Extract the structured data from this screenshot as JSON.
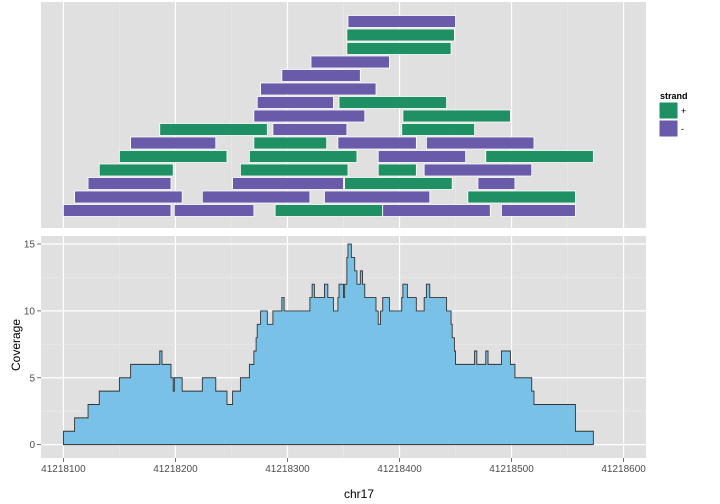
{
  "colors": {
    "panel_bg": "#e0e0e0",
    "grid_major": "#ffffff",
    "grid_minor": "#ebebeb",
    "plus_strand": "#1f8f64",
    "minus_strand": "#6a5aaa",
    "coverage_fill": "#79c1e6",
    "coverage_line": "#333333"
  },
  "chart_data": [
    {
      "type": "alignment",
      "x_range": [
        41218080,
        41218620
      ],
      "x_breaks": [
        41218100,
        41218200,
        41218300,
        41218400,
        41218500,
        41218600
      ],
      "legend": {
        "title": "strand",
        "placement": "right",
        "entries": [
          {
            "key": "plus",
            "label": "+",
            "color": "#1f8f64"
          },
          {
            "key": "minus",
            "label": "-",
            "color": "#6a5aaa"
          }
        ]
      },
      "reads": [
        {
          "start": 41218354,
          "end": 41218450,
          "row": 16,
          "strand": "-"
        },
        {
          "start": 41218353,
          "end": 41218449,
          "row": 15,
          "strand": "+"
        },
        {
          "start": 41218353,
          "end": 41218446,
          "row": 14,
          "strand": "+"
        },
        {
          "start": 41218321,
          "end": 41218391,
          "row": 13,
          "strand": "-"
        },
        {
          "start": 41218295,
          "end": 41218365,
          "row": 12,
          "strand": "-"
        },
        {
          "start": 41218276,
          "end": 41218379,
          "row": 11,
          "strand": "-"
        },
        {
          "start": 41218273,
          "end": 41218341,
          "row": 10,
          "strand": "-"
        },
        {
          "start": 41218346,
          "end": 41218442,
          "row": 10,
          "strand": "+"
        },
        {
          "start": 41218270,
          "end": 41218369,
          "row": 9,
          "strand": "-"
        },
        {
          "start": 41218403,
          "end": 41218499,
          "row": 9,
          "strand": "+"
        },
        {
          "start": 41218186,
          "end": 41218282,
          "row": 8,
          "strand": "+"
        },
        {
          "start": 41218287,
          "end": 41218353,
          "row": 8,
          "strand": "-"
        },
        {
          "start": 41218402,
          "end": 41218467,
          "row": 8,
          "strand": "+"
        },
        {
          "start": 41218160,
          "end": 41218236,
          "row": 7,
          "strand": "-"
        },
        {
          "start": 41218270,
          "end": 41218335,
          "row": 7,
          "strand": "+"
        },
        {
          "start": 41218345,
          "end": 41218415,
          "row": 7,
          "strand": "-"
        },
        {
          "start": 41218424,
          "end": 41218520,
          "row": 7,
          "strand": "-"
        },
        {
          "start": 41218150,
          "end": 41218246,
          "row": 6,
          "strand": "+"
        },
        {
          "start": 41218266,
          "end": 41218362,
          "row": 6,
          "strand": "+"
        },
        {
          "start": 41218381,
          "end": 41218459,
          "row": 6,
          "strand": "-"
        },
        {
          "start": 41218477,
          "end": 41218573,
          "row": 6,
          "strand": "+"
        },
        {
          "start": 41218132,
          "end": 41218198,
          "row": 5,
          "strand": "+"
        },
        {
          "start": 41218258,
          "end": 41218354,
          "row": 5,
          "strand": "+"
        },
        {
          "start": 41218381,
          "end": 41218415,
          "row": 5,
          "strand": "+"
        },
        {
          "start": 41218422,
          "end": 41218518,
          "row": 5,
          "strand": "-"
        },
        {
          "start": 41218122,
          "end": 41218196,
          "row": 4,
          "strand": "-"
        },
        {
          "start": 41218251,
          "end": 41218350,
          "row": 4,
          "strand": "-"
        },
        {
          "start": 41218351,
          "end": 41218447,
          "row": 4,
          "strand": "+"
        },
        {
          "start": 41218470,
          "end": 41218503,
          "row": 4,
          "strand": "-"
        },
        {
          "start": 41218110,
          "end": 41218206,
          "row": 3,
          "strand": "-"
        },
        {
          "start": 41218224,
          "end": 41218320,
          "row": 3,
          "strand": "-"
        },
        {
          "start": 41218333,
          "end": 41218427,
          "row": 3,
          "strand": "-"
        },
        {
          "start": 41218461,
          "end": 41218557,
          "row": 3,
          "strand": "+"
        },
        {
          "start": 41218100,
          "end": 41218196,
          "row": 2,
          "strand": "-"
        },
        {
          "start": 41218199,
          "end": 41218270,
          "row": 2,
          "strand": "-"
        },
        {
          "start": 41218289,
          "end": 41218385,
          "row": 2,
          "strand": "+"
        },
        {
          "start": 41218385,
          "end": 41218481,
          "row": 2,
          "strand": "-"
        },
        {
          "start": 41218491,
          "end": 41218557,
          "row": 2,
          "strand": "-"
        }
      ]
    },
    {
      "type": "area",
      "xlabel": "chr17",
      "ylabel": "Coverage",
      "x_range": [
        41218080,
        41218620
      ],
      "x_breaks": [
        41218100,
        41218200,
        41218300,
        41218400,
        41218500,
        41218600
      ],
      "x_tick_labels": [
        "41218100",
        "41218200",
        "41218300",
        "41218400",
        "41218500",
        "41218600"
      ],
      "ylim": [
        -1,
        15.6
      ],
      "y_breaks": [
        0,
        5,
        10,
        15
      ],
      "y_tick_labels": [
        "0",
        "5",
        "10",
        "15"
      ],
      "points": [
        [
          41218100,
          0
        ],
        [
          41218100,
          1
        ],
        [
          41218110,
          1
        ],
        [
          41218110,
          2
        ],
        [
          41218122,
          2
        ],
        [
          41218122,
          3
        ],
        [
          41218132,
          3
        ],
        [
          41218132,
          4
        ],
        [
          41218150,
          4
        ],
        [
          41218150,
          5
        ],
        [
          41218160,
          5
        ],
        [
          41218160,
          6
        ],
        [
          41218186,
          6
        ],
        [
          41218186,
          7
        ],
        [
          41218188,
          7
        ],
        [
          41218188,
          6
        ],
        [
          41218196,
          6
        ],
        [
          41218196,
          5
        ],
        [
          41218198,
          5
        ],
        [
          41218198,
          4
        ],
        [
          41218199,
          4
        ],
        [
          41218199,
          5
        ],
        [
          41218206,
          5
        ],
        [
          41218206,
          4
        ],
        [
          41218224,
          4
        ],
        [
          41218224,
          5
        ],
        [
          41218236,
          5
        ],
        [
          41218236,
          4
        ],
        [
          41218246,
          4
        ],
        [
          41218246,
          3
        ],
        [
          41218251,
          3
        ],
        [
          41218251,
          4
        ],
        [
          41218258,
          4
        ],
        [
          41218258,
          5
        ],
        [
          41218266,
          5
        ],
        [
          41218266,
          6
        ],
        [
          41218270,
          6
        ],
        [
          41218270,
          7
        ],
        [
          41218272,
          7
        ],
        [
          41218272,
          8
        ],
        [
          41218273,
          8
        ],
        [
          41218273,
          9
        ],
        [
          41218276,
          9
        ],
        [
          41218276,
          10
        ],
        [
          41218282,
          10
        ],
        [
          41218282,
          9
        ],
        [
          41218287,
          9
        ],
        [
          41218287,
          10
        ],
        [
          41218295,
          10
        ],
        [
          41218295,
          11
        ],
        [
          41218297,
          11
        ],
        [
          41218297,
          10
        ],
        [
          41218320,
          10
        ],
        [
          41218320,
          11
        ],
        [
          41218322,
          11
        ],
        [
          41218322,
          12
        ],
        [
          41218324,
          12
        ],
        [
          41218324,
          11
        ],
        [
          41218333,
          11
        ],
        [
          41218333,
          12
        ],
        [
          41218336,
          12
        ],
        [
          41218336,
          11
        ],
        [
          41218341,
          11
        ],
        [
          41218341,
          10
        ],
        [
          41218345,
          10
        ],
        [
          41218345,
          11
        ],
        [
          41218346,
          11
        ],
        [
          41218346,
          12
        ],
        [
          41218350,
          12
        ],
        [
          41218350,
          11
        ],
        [
          41218351,
          11
        ],
        [
          41218351,
          12
        ],
        [
          41218353,
          12
        ],
        [
          41218353,
          14
        ],
        [
          41218354,
          14
        ],
        [
          41218354,
          15
        ],
        [
          41218357,
          15
        ],
        [
          41218357,
          14
        ],
        [
          41218360,
          14
        ],
        [
          41218360,
          13
        ],
        [
          41218362,
          13
        ],
        [
          41218362,
          12
        ],
        [
          41218365,
          12
        ],
        [
          41218365,
          13
        ],
        [
          41218367,
          13
        ],
        [
          41218367,
          12
        ],
        [
          41218369,
          12
        ],
        [
          41218369,
          11
        ],
        [
          41218379,
          11
        ],
        [
          41218379,
          10
        ],
        [
          41218381,
          10
        ],
        [
          41218381,
          9
        ],
        [
          41218383,
          9
        ],
        [
          41218383,
          10
        ],
        [
          41218385,
          10
        ],
        [
          41218385,
          11
        ],
        [
          41218391,
          11
        ],
        [
          41218391,
          10
        ],
        [
          41218402,
          10
        ],
        [
          41218402,
          11
        ],
        [
          41218403,
          11
        ],
        [
          41218403,
          12
        ],
        [
          41218407,
          12
        ],
        [
          41218407,
          11
        ],
        [
          41218415,
          11
        ],
        [
          41218415,
          10
        ],
        [
          41218422,
          10
        ],
        [
          41218422,
          11
        ],
        [
          41218424,
          11
        ],
        [
          41218424,
          12
        ],
        [
          41218427,
          12
        ],
        [
          41218427,
          11
        ],
        [
          41218442,
          11
        ],
        [
          41218442,
          10
        ],
        [
          41218446,
          10
        ],
        [
          41218446,
          9
        ],
        [
          41218447,
          9
        ],
        [
          41218447,
          8
        ],
        [
          41218449,
          8
        ],
        [
          41218449,
          7
        ],
        [
          41218450,
          7
        ],
        [
          41218450,
          6
        ],
        [
          41218467,
          6
        ],
        [
          41218467,
          7
        ],
        [
          41218469,
          7
        ],
        [
          41218469,
          6
        ],
        [
          41218477,
          6
        ],
        [
          41218477,
          7
        ],
        [
          41218479,
          7
        ],
        [
          41218479,
          6
        ],
        [
          41218491,
          6
        ],
        [
          41218491,
          7
        ],
        [
          41218499,
          7
        ],
        [
          41218499,
          6
        ],
        [
          41218503,
          6
        ],
        [
          41218503,
          5
        ],
        [
          41218518,
          5
        ],
        [
          41218518,
          4
        ],
        [
          41218520,
          4
        ],
        [
          41218520,
          3
        ],
        [
          41218557,
          3
        ],
        [
          41218557,
          1
        ],
        [
          41218573,
          1
        ],
        [
          41218573,
          0
        ]
      ]
    }
  ]
}
